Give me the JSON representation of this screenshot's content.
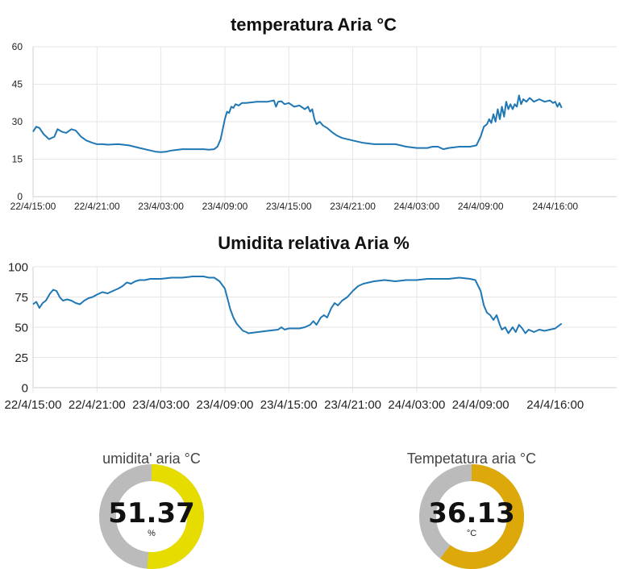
{
  "colors": {
    "line": "#1f77b4",
    "grid": "#e6e6e6",
    "gauge_track": "#bbbbbb",
    "gauge_humidity": "#e6dc00",
    "gauge_temp": "#dca80a"
  },
  "chart_data": [
    {
      "type": "line",
      "title": "temperatura Aria °C",
      "x_ticks": [
        "22/4/15:00",
        "22/4/21:00",
        "23/4/03:00",
        "23/4/09:00",
        "23/4/15:00",
        "23/4/21:00",
        "24/4/03:00",
        "24/4/09:00",
        "24/4/16:00"
      ],
      "x_tick_hours": [
        0,
        6,
        12,
        18,
        24,
        30,
        36,
        42,
        49
      ],
      "y_ticks": [
        "0",
        "15",
        "30",
        "45",
        "60"
      ],
      "ylim": [
        0,
        60
      ],
      "xlim_hours": [
        0,
        52.5
      ],
      "grid": true,
      "series": [
        {
          "points": [
            [
              0,
              26
            ],
            [
              0.3,
              28
            ],
            [
              0.6,
              27.5
            ],
            [
              1,
              25
            ],
            [
              1.5,
              23
            ],
            [
              2,
              24
            ],
            [
              2.3,
              27
            ],
            [
              2.7,
              26
            ],
            [
              3.1,
              25.5
            ],
            [
              3.6,
              27
            ],
            [
              4,
              26.5
            ],
            [
              4.5,
              24
            ],
            [
              5,
              22.5
            ],
            [
              5.6,
              21.5
            ],
            [
              6,
              21
            ],
            [
              6.5,
              21
            ],
            [
              7,
              20.8
            ],
            [
              8,
              21
            ],
            [
              9,
              20.5
            ],
            [
              10,
              19.5
            ],
            [
              11,
              18.5
            ],
            [
              11.5,
              18
            ],
            [
              12,
              17.8
            ],
            [
              12.5,
              18
            ],
            [
              13,
              18.5
            ],
            [
              14,
              19
            ],
            [
              15,
              19
            ],
            [
              16,
              19
            ],
            [
              16.5,
              18.8
            ],
            [
              17,
              19
            ],
            [
              17.3,
              20
            ],
            [
              17.6,
              23
            ],
            [
              17.8,
              27
            ],
            [
              18,
              31
            ],
            [
              18.2,
              34
            ],
            [
              18.4,
              33.5
            ],
            [
              18.6,
              36
            ],
            [
              18.8,
              35.5
            ],
            [
              19,
              37
            ],
            [
              19.3,
              36.5
            ],
            [
              19.6,
              37.5
            ],
            [
              20,
              37.5
            ],
            [
              21,
              38
            ],
            [
              22,
              38
            ],
            [
              22.6,
              38.5
            ],
            [
              22.8,
              36
            ],
            [
              23,
              38
            ],
            [
              23.3,
              38.2
            ],
            [
              23.6,
              37
            ],
            [
              24,
              37.5
            ],
            [
              24.5,
              36
            ],
            [
              25,
              36.5
            ],
            [
              25.5,
              35
            ],
            [
              25.8,
              36
            ],
            [
              26,
              34
            ],
            [
              26.2,
              35
            ],
            [
              26.4,
              31
            ],
            [
              26.6,
              29
            ],
            [
              26.9,
              30
            ],
            [
              27.2,
              28.5
            ],
            [
              27.6,
              27.5
            ],
            [
              28,
              26
            ],
            [
              28.5,
              24.5
            ],
            [
              29,
              23.5
            ],
            [
              30,
              22.5
            ],
            [
              31,
              21.5
            ],
            [
              32,
              21
            ],
            [
              33,
              21
            ],
            [
              34,
              21
            ],
            [
              34.5,
              20.5
            ],
            [
              35,
              20
            ],
            [
              36,
              19.5
            ],
            [
              37,
              19.5
            ],
            [
              37.5,
              20
            ],
            [
              38,
              20
            ],
            [
              38.5,
              19
            ],
            [
              39,
              19.5
            ],
            [
              40,
              20
            ],
            [
              41,
              20
            ],
            [
              41.6,
              20.5
            ],
            [
              42,
              24
            ],
            [
              42.3,
              28
            ],
            [
              42.6,
              29
            ],
            [
              42.8,
              31
            ],
            [
              43,
              29.5
            ],
            [
              43.2,
              33
            ],
            [
              43.4,
              30
            ],
            [
              43.6,
              35
            ],
            [
              43.8,
              31
            ],
            [
              44,
              36
            ],
            [
              44.2,
              32
            ],
            [
              44.4,
              38
            ],
            [
              44.6,
              35
            ],
            [
              44.8,
              37
            ],
            [
              45,
              35
            ],
            [
              45.2,
              37
            ],
            [
              45.4,
              36
            ],
            [
              45.6,
              40.5
            ],
            [
              45.8,
              37
            ],
            [
              46,
              39
            ],
            [
              46.3,
              38
            ],
            [
              46.6,
              39.5
            ],
            [
              47,
              38
            ],
            [
              47.5,
              39
            ],
            [
              48,
              38
            ],
            [
              48.5,
              38.5
            ],
            [
              48.8,
              37.5
            ],
            [
              49,
              38
            ],
            [
              49.2,
              36
            ],
            [
              49.4,
              37.5
            ],
            [
              49.6,
              35.5
            ]
          ]
        }
      ]
    },
    {
      "type": "line",
      "title": "Umidita relativa Aria %",
      "x_ticks": [
        "22/4/15:00",
        "22/4/21:00",
        "23/4/03:00",
        "23/4/09:00",
        "23/4/15:00",
        "23/4/21:00",
        "24/4/03:00",
        "24/4/09:00",
        "24/4/16:00"
      ],
      "x_tick_hours": [
        0,
        6,
        12,
        18,
        24,
        30,
        36,
        42,
        49
      ],
      "y_ticks": [
        "0",
        "25",
        "50",
        "75",
        "100"
      ],
      "ylim": [
        0,
        100
      ],
      "xlim_hours": [
        0,
        52.5
      ],
      "grid": true,
      "series": [
        {
          "points": [
            [
              0,
              69
            ],
            [
              0.3,
              71
            ],
            [
              0.6,
              66
            ],
            [
              0.9,
              70
            ],
            [
              1.2,
              72
            ],
            [
              1.6,
              78
            ],
            [
              1.9,
              81
            ],
            [
              2.2,
              80
            ],
            [
              2.5,
              75
            ],
            [
              2.8,
              72
            ],
            [
              3.2,
              73
            ],
            [
              3.6,
              72
            ],
            [
              4,
              70
            ],
            [
              4.4,
              69
            ],
            [
              4.8,
              72
            ],
            [
              5.2,
              74
            ],
            [
              5.6,
              75
            ],
            [
              6,
              77
            ],
            [
              6.5,
              79
            ],
            [
              7,
              78
            ],
            [
              7.5,
              80
            ],
            [
              8,
              82
            ],
            [
              8.4,
              84
            ],
            [
              8.8,
              87
            ],
            [
              9.2,
              86
            ],
            [
              9.6,
              88
            ],
            [
              10,
              89
            ],
            [
              10.5,
              89
            ],
            [
              11,
              90
            ],
            [
              12,
              90
            ],
            [
              13,
              91
            ],
            [
              14,
              91
            ],
            [
              15,
              92
            ],
            [
              16,
              92
            ],
            [
              16.5,
              91
            ],
            [
              17,
              91
            ],
            [
              17.5,
              88
            ],
            [
              18,
              82
            ],
            [
              18.3,
              72
            ],
            [
              18.5,
              65
            ],
            [
              18.8,
              58
            ],
            [
              19.1,
              53
            ],
            [
              19.4,
              50
            ],
            [
              19.7,
              47
            ],
            [
              20,
              46
            ],
            [
              20.2,
              45
            ],
            [
              22,
              47
            ],
            [
              23,
              48
            ],
            [
              23.3,
              50
            ],
            [
              23.6,
              48
            ],
            [
              24,
              49
            ],
            [
              25,
              49
            ],
            [
              25.5,
              50
            ],
            [
              26,
              52
            ],
            [
              26.3,
              55
            ],
            [
              26.6,
              52
            ],
            [
              27,
              58
            ],
            [
              27.3,
              60
            ],
            [
              27.6,
              58
            ],
            [
              28,
              66
            ],
            [
              28.3,
              70
            ],
            [
              28.6,
              68
            ],
            [
              29,
              72
            ],
            [
              29.5,
              75
            ],
            [
              30,
              80
            ],
            [
              30.5,
              84
            ],
            [
              31,
              86
            ],
            [
              32,
              88
            ],
            [
              33,
              89
            ],
            [
              34,
              88
            ],
            [
              35,
              89
            ],
            [
              36,
              89
            ],
            [
              37,
              90
            ],
            [
              38,
              90
            ],
            [
              39,
              90
            ],
            [
              40,
              91
            ],
            [
              41,
              90
            ],
            [
              41.5,
              89
            ],
            [
              42,
              80
            ],
            [
              42.3,
              68
            ],
            [
              42.6,
              62
            ],
            [
              42.9,
              60
            ],
            [
              43.2,
              56
            ],
            [
              43.5,
              60
            ],
            [
              43.8,
              52
            ],
            [
              44,
              48
            ],
            [
              44.3,
              50
            ],
            [
              44.6,
              45
            ],
            [
              45,
              50
            ],
            [
              45.3,
              46
            ],
            [
              45.6,
              52
            ],
            [
              45.9,
              49
            ],
            [
              46.2,
              45
            ],
            [
              46.5,
              48
            ],
            [
              47,
              46
            ],
            [
              47.5,
              48
            ],
            [
              48,
              47
            ],
            [
              48.5,
              48
            ],
            [
              49,
              49
            ],
            [
              49.3,
              51
            ],
            [
              49.6,
              53
            ]
          ]
        }
      ]
    }
  ],
  "gauges": {
    "humidity": {
      "label": "umidita' aria °C",
      "value": "51.37",
      "unit": "%",
      "fraction": 0.5137
    },
    "temperature": {
      "label": "Tempetatura aria °C",
      "value": "36.13",
      "unit": "°C",
      "fraction": 0.6022
    }
  }
}
